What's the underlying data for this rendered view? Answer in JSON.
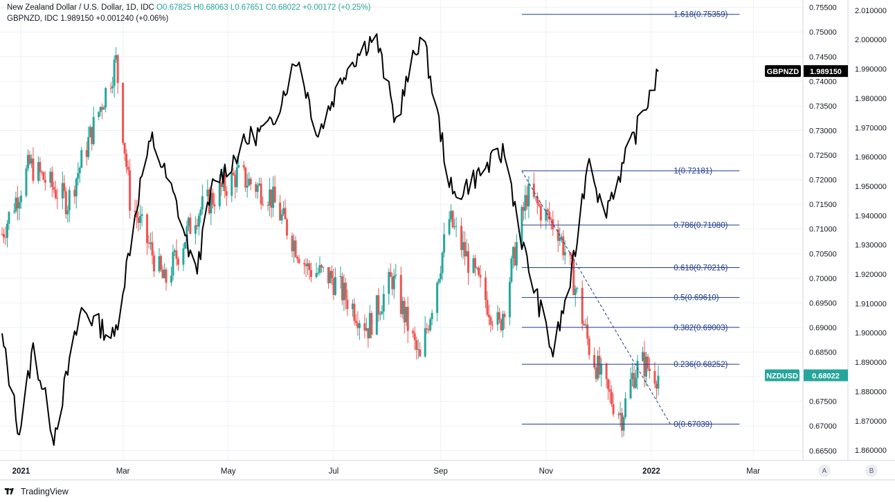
{
  "legend": {
    "main_title": "New Zealand Dollar / U.S. Dollar, 1D, IDC",
    "main_ohlc": "O0.67825 H0.68063 L0.67651 C0.68022 +0.00172 (+0.25%)",
    "second_title": "GBPNZD, IDC",
    "second_values": "1.989150 +0.001240 (+0.06%)"
  },
  "footer": {
    "brand": "TradingView"
  },
  "axis_buttons": {
    "a": "A",
    "b": "B"
  },
  "price_labels": {
    "gbpnzd_name": "GBPNZD",
    "gbpnzd_value": "1.989150",
    "nzdusd_name": "NZDUSD",
    "nzdusd_value": "0.68022"
  },
  "colors": {
    "up": "#26a69a",
    "down": "#ef5350",
    "line": "#000000",
    "fib": "#1e3a8a",
    "tag_dark": "#000000",
    "tag_green": "#26a69a"
  },
  "chart_data": {
    "type": "candlestick_with_line_overlay",
    "x_tick_labels": [
      "2021",
      "Mar",
      "May",
      "Jul",
      "Sep",
      "Nov",
      "2022",
      "Mar"
    ],
    "left_axis_ticks": [
      "0.75500",
      "0.75000",
      "0.74500",
      "0.74000",
      "0.73500",
      "0.73000",
      "0.72500",
      "0.72000",
      "0.71500",
      "0.71000",
      "0.70500",
      "0.70000",
      "0.69500",
      "0.69000",
      "0.68500",
      "0.68000",
      "0.67500",
      "0.67000",
      "0.66500"
    ],
    "right_axis_ticks": [
      "2.010000",
      "2.000000",
      "1.990000",
      "1.980000",
      "1.970000",
      "1.960000",
      "1.950000",
      "1.940000",
      "1.930000",
      "1.920000",
      "1.910000",
      "1.900000",
      "1.890000",
      "1.880000",
      "1.870000",
      "1.860000"
    ],
    "primary_axis_range": [
      0.663,
      0.7565
    ],
    "secondary_axis_range": [
      1.8565,
      2.0135
    ],
    "grid": true,
    "nzdusd_close_key_points": [
      [
        "2020-12-21",
        0.709
      ],
      [
        "2021-01-06",
        0.723
      ],
      [
        "2021-01-28",
        0.7155
      ],
      [
        "2021-02-25",
        0.744
      ],
      [
        "2021-03-05",
        0.716
      ],
      [
        "2021-03-25",
        0.699
      ],
      [
        "2021-04-12",
        0.713
      ],
      [
        "2021-05-06",
        0.721
      ],
      [
        "2021-05-25",
        0.717
      ],
      [
        "2021-06-16",
        0.702
      ],
      [
        "2021-06-30",
        0.7
      ],
      [
        "2021-07-21",
        0.69
      ],
      [
        "2021-08-04",
        0.7
      ],
      [
        "2021-08-20",
        0.683
      ],
      [
        "2021-09-06",
        0.712
      ],
      [
        "2021-09-28",
        0.695
      ],
      [
        "2021-10-05",
        0.69
      ],
      [
        "2021-10-21",
        0.717
      ],
      [
        "2021-11-08",
        0.71
      ],
      [
        "2021-11-16",
        0.701
      ],
      [
        "2021-11-26",
        0.686
      ],
      [
        "2021-12-06",
        0.677
      ],
      [
        "2021-12-15",
        0.672
      ],
      [
        "2021-12-21",
        0.68
      ],
      [
        "2021-12-26",
        0.683
      ],
      [
        "2022-01-05",
        0.6802
      ]
    ],
    "gbpnzd_key_points": [
      [
        "2020-12-21",
        1.898
      ],
      [
        "2020-12-31",
        1.866
      ],
      [
        "2021-01-08",
        1.895
      ],
      [
        "2021-01-20",
        1.865
      ],
      [
        "2021-02-05",
        1.908
      ],
      [
        "2021-02-24",
        1.898
      ],
      [
        "2021-03-12",
        1.954
      ],
      [
        "2021-03-18",
        1.966
      ],
      [
        "2021-04-02",
        1.942
      ],
      [
        "2021-04-12",
        1.92
      ],
      [
        "2021-04-22",
        1.95
      ],
      [
        "2021-05-14",
        1.967
      ],
      [
        "2021-05-25",
        1.97
      ],
      [
        "2021-06-10",
        1.994
      ],
      [
        "2021-06-22",
        1.968
      ],
      [
        "2021-07-08",
        1.99
      ],
      [
        "2021-07-25",
        2.002
      ],
      [
        "2021-08-06",
        1.972
      ],
      [
        "2021-08-21",
        2.003
      ],
      [
        "2021-09-08",
        1.946
      ],
      [
        "2021-09-21",
        1.953
      ],
      [
        "2021-10-08",
        1.962
      ],
      [
        "2021-10-20",
        1.926
      ],
      [
        "2021-11-05",
        1.893
      ],
      [
        "2021-11-16",
        1.92
      ],
      [
        "2021-11-26",
        1.962
      ],
      [
        "2021-12-04",
        1.94
      ],
      [
        "2021-12-19",
        1.962
      ],
      [
        "2022-01-05",
        1.989
      ]
    ],
    "fib_levels": [
      {
        "label": "1.618(0.75359)",
        "value": 0.75359
      },
      {
        "label": "1(0.72181)",
        "value": 0.72181
      },
      {
        "label": "0.786(0.71080)",
        "value": 0.7108
      },
      {
        "label": "0.618(0.70216)",
        "value": 0.70216
      },
      {
        "label": "0.5(0.69610)",
        "value": 0.6961
      },
      {
        "label": "0.382(0.69003)",
        "value": 0.69003
      },
      {
        "label": "0.236(0.68252)",
        "value": 0.68252
      },
      {
        "label": "0(0.67039)",
        "value": 0.67039
      }
    ],
    "trend_line": [
      [
        "2021-10-18",
        0.72181
      ],
      [
        "2022-01-12",
        0.67039
      ]
    ],
    "last_values": {
      "nzdusd": 0.68022,
      "gbpnzd": 1.98915
    }
  }
}
